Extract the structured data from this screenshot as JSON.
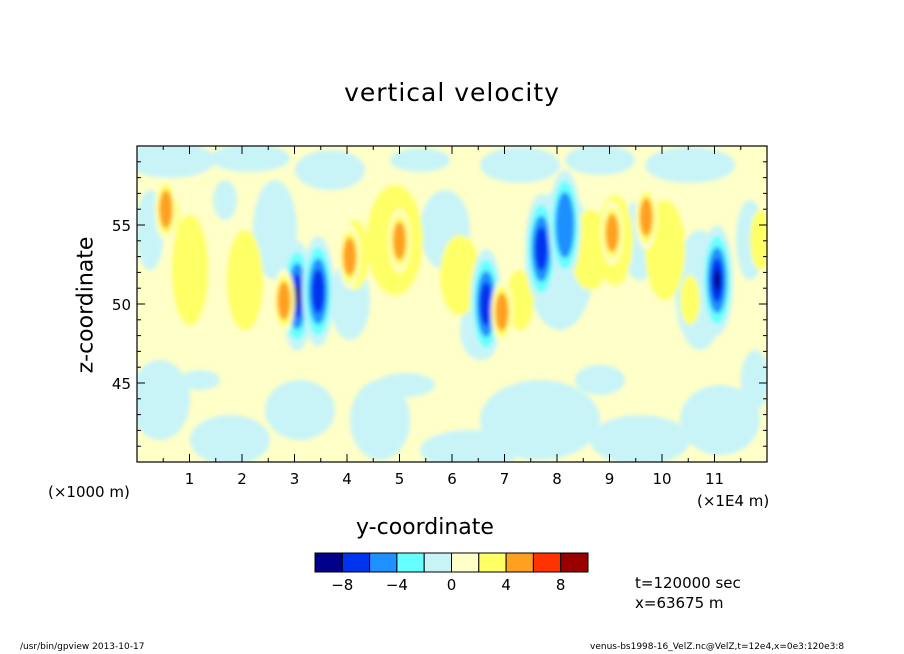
{
  "chart_data": {
    "type": "heatmap",
    "title": "vertical velocity",
    "xlabel": "y-coordinate",
    "ylabel": "z-coordinate",
    "x_unit_note": "(×1000 m)",
    "x_scale_note": "(×1E4 m)",
    "xlim": [
      0,
      120000
    ],
    "ylim": [
      40000,
      60000
    ],
    "x_ticks": [
      1,
      2,
      3,
      4,
      5,
      6,
      7,
      8,
      9,
      10,
      11
    ],
    "y_ticks": [
      45,
      50,
      55
    ],
    "colorbar": {
      "levels": [
        -10,
        -8,
        -6,
        -4,
        -2,
        0,
        2,
        4,
        6,
        8,
        10
      ],
      "tick_labels": [
        "−8",
        "−4",
        "0",
        "4",
        "8"
      ],
      "tick_values": [
        -8,
        -4,
        0,
        4,
        8
      ],
      "colors": [
        "#00008b",
        "#0033ee",
        "#1e90ff",
        "#66ffff",
        "#c8f4f8",
        "#ffffc8",
        "#ffff66",
        "#ffa020",
        "#ff3300",
        "#990000"
      ]
    },
    "features": [
      {
        "y": 30500,
        "z": 50500,
        "value": -9
      },
      {
        "y": 34500,
        "z": 50800,
        "value": -8
      },
      {
        "y": 40500,
        "z": 53000,
        "value": 5
      },
      {
        "y": 50000,
        "z": 54000,
        "value": 5
      },
      {
        "y": 66500,
        "z": 50000,
        "value": -8
      },
      {
        "y": 69500,
        "z": 49500,
        "value": 5
      },
      {
        "y": 77000,
        "z": 53500,
        "value": -7
      },
      {
        "y": 81500,
        "z": 55000,
        "value": -6
      },
      {
        "y": 90500,
        "z": 54500,
        "value": 5
      },
      {
        "y": 97000,
        "z": 55500,
        "value": 5
      },
      {
        "y": 110500,
        "z": 51500,
        "value": -9
      },
      {
        "y": 5500,
        "z": 56000,
        "value": 5
      },
      {
        "y": 28000,
        "z": 50200,
        "value": 5
      }
    ]
  },
  "info": {
    "time": "t=120000 sec",
    "xpos": "x=63675 m"
  },
  "footer": {
    "left": "/usr/bin/gpview   2013-10-17",
    "right": "venus-bs1998-16_VelZ.nc@VelZ,t=12e4,x=0e3:120e3:8"
  }
}
